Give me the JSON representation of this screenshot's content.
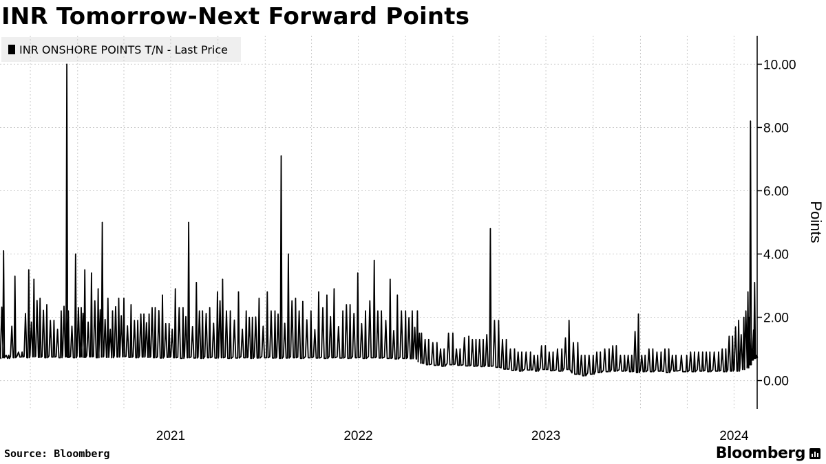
{
  "header": {
    "title": "INR Tomorrow-Next Forward Points"
  },
  "legend": {
    "label": "INR ONSHORE POINTS T/N - Last Price"
  },
  "footer": {
    "source": "Source: Bloomberg",
    "brand": "Bloomberg"
  },
  "chart_data": {
    "type": "line",
    "title": "INR Tomorrow-Next Forward Points",
    "xlabel": "",
    "ylabel": "Points",
    "ylim": [
      -0.9,
      10.9
    ],
    "xlim": [
      "2020-08-03",
      "2024-08-15"
    ],
    "yticks": [
      0,
      2,
      4,
      6,
      8,
      10
    ],
    "ytick_labels": [
      "0.00",
      "2.00",
      "4.00",
      "6.00",
      "8.00",
      "10.00"
    ],
    "xtick_labels": [
      "2021",
      "2022",
      "2023",
      "2024"
    ],
    "grid": true,
    "legend_position": "top-left",
    "colors": {
      "line": "#000000",
      "grid": "#cccccc",
      "legend_bg": "#efefef"
    },
    "series": [
      {
        "name": "INR ONSHORE POINTS T/N - Last Price",
        "x": [
          "2020-08-03",
          "2020-08-10",
          "2020-08-20",
          "2020-09-01",
          "2020-09-15",
          "2020-09-28",
          "2020-10-08",
          "2020-10-20",
          "2020-11-02",
          "2020-11-16",
          "2020-11-30",
          "2020-12-11",
          "2020-12-14",
          "2020-12-28",
          "2021-01-08",
          "2021-01-15",
          "2021-01-28",
          "2021-02-10",
          "2021-02-18",
          "2021-03-01",
          "2021-03-10",
          "2021-03-22",
          "2021-04-01",
          "2021-04-15",
          "2021-04-28",
          "2021-05-10",
          "2021-05-20",
          "2021-06-01",
          "2021-06-15",
          "2021-06-28",
          "2021-07-10",
          "2021-07-25",
          "2021-08-05",
          "2021-08-20",
          "2021-09-01",
          "2021-09-15",
          "2021-09-30",
          "2021-10-10",
          "2021-10-25",
          "2021-11-10",
          "2021-11-25",
          "2021-12-07",
          "2021-12-20",
          "2022-01-05",
          "2022-01-20",
          "2022-02-01",
          "2022-02-15",
          "2022-03-01",
          "2022-03-15",
          "2022-03-31",
          "2022-04-15",
          "2022-05-01",
          "2022-05-15",
          "2022-06-01",
          "2022-06-15",
          "2022-06-30",
          "2022-07-15",
          "2022-08-01",
          "2022-08-15",
          "2022-09-01",
          "2022-09-15",
          "2022-10-01",
          "2022-10-14",
          "2022-10-24",
          "2022-11-01",
          "2022-11-15",
          "2022-12-01",
          "2022-12-15",
          "2023-01-01",
          "2023-01-15",
          "2023-02-01",
          "2023-02-15",
          "2023-03-01",
          "2023-03-15",
          "2023-03-31",
          "2023-04-15",
          "2023-05-01",
          "2023-05-15",
          "2023-06-01",
          "2023-06-15",
          "2023-06-30",
          "2023-07-15",
          "2023-08-01",
          "2023-08-15",
          "2023-09-01",
          "2023-09-15",
          "2023-10-01",
          "2023-10-15",
          "2023-11-01",
          "2023-11-15",
          "2023-12-01",
          "2023-12-15",
          "2023-12-28",
          "2024-01-10",
          "2024-01-25",
          "2024-02-10",
          "2024-02-25",
          "2024-03-10",
          "2024-03-31",
          "2024-04-15",
          "2024-05-01",
          "2024-05-15",
          "2024-06-01",
          "2024-06-15",
          "2024-06-28",
          "2024-07-10",
          "2024-07-20",
          "2024-07-28",
          "2024-08-02",
          "2024-08-06",
          "2024-08-10",
          "2024-08-14"
        ],
        "values": [
          0.8,
          4.1,
          0.8,
          3.3,
          0.9,
          3.5,
          3.2,
          2.6,
          2.4,
          1.9,
          2.2,
          10.0,
          2.2,
          4.0,
          2.3,
          3.5,
          3.4,
          2.9,
          5.0,
          2.6,
          2.2,
          2.6,
          2.6,
          2.4,
          1.9,
          2.1,
          2.1,
          2.3,
          2.7,
          1.8,
          2.9,
          2.3,
          5.0,
          3.1,
          2.2,
          2.3,
          2.8,
          3.2,
          2.2,
          2.8,
          2.2,
          2.0,
          2.6,
          2.8,
          2.2,
          7.1,
          4.0,
          2.6,
          2.5,
          2.2,
          2.8,
          2.7,
          2.9,
          2.2,
          2.4,
          3.4,
          2.2,
          3.8,
          2.2,
          3.2,
          2.7,
          2.2,
          2.2,
          2.2,
          1.5,
          1.3,
          1.2,
          1.0,
          1.5,
          1.0,
          1.4,
          1.3,
          1.3,
          4.8,
          1.9,
          1.3,
          1.0,
          0.9,
          0.9,
          0.8,
          1.1,
          0.9,
          1.0,
          1.9,
          1.2,
          0.8,
          0.8,
          0.9,
          1.0,
          1.1,
          0.8,
          0.8,
          2.1,
          0.8,
          1.0,
          0.9,
          1.0,
          0.8,
          0.8,
          0.9,
          0.9,
          0.9,
          0.9,
          1.0,
          1.4,
          1.9,
          2.0,
          2.8,
          8.2,
          1.0,
          3.1,
          0.8
        ],
        "baseline": [
          0.7,
          0.72,
          0.7,
          0.72,
          0.74,
          0.72,
          0.75,
          0.73,
          0.72,
          0.74,
          0.72,
          0.75,
          0.73,
          0.72,
          0.74,
          0.73,
          0.75,
          0.72,
          0.74,
          0.73,
          0.72,
          0.74,
          0.75,
          0.73,
          0.72,
          0.74,
          0.73,
          0.72,
          0.71,
          0.73,
          0.72,
          0.7,
          0.72,
          0.71,
          0.7,
          0.72,
          0.71,
          0.72,
          0.7,
          0.71,
          0.72,
          0.7,
          0.71,
          0.72,
          0.71,
          0.7,
          0.71,
          0.72,
          0.7,
          0.72,
          0.71,
          0.7,
          0.72,
          0.71,
          0.7,
          0.72,
          0.7,
          0.72,
          0.71,
          0.7,
          0.68,
          0.7,
          0.69,
          0.68,
          0.55,
          0.5,
          0.48,
          0.45,
          0.5,
          0.48,
          0.46,
          0.45,
          0.44,
          0.45,
          0.42,
          0.36,
          0.32,
          0.3,
          0.33,
          0.3,
          0.35,
          0.31,
          0.3,
          0.35,
          0.2,
          0.15,
          0.2,
          0.25,
          0.28,
          0.3,
          0.3,
          0.28,
          0.25,
          0.28,
          0.28,
          0.3,
          0.25,
          0.3,
          0.28,
          0.28,
          0.3,
          0.28,
          0.3,
          0.28,
          0.3,
          0.3,
          0.35,
          0.4,
          0.5,
          0.65,
          0.7,
          0.72
        ]
      }
    ]
  }
}
